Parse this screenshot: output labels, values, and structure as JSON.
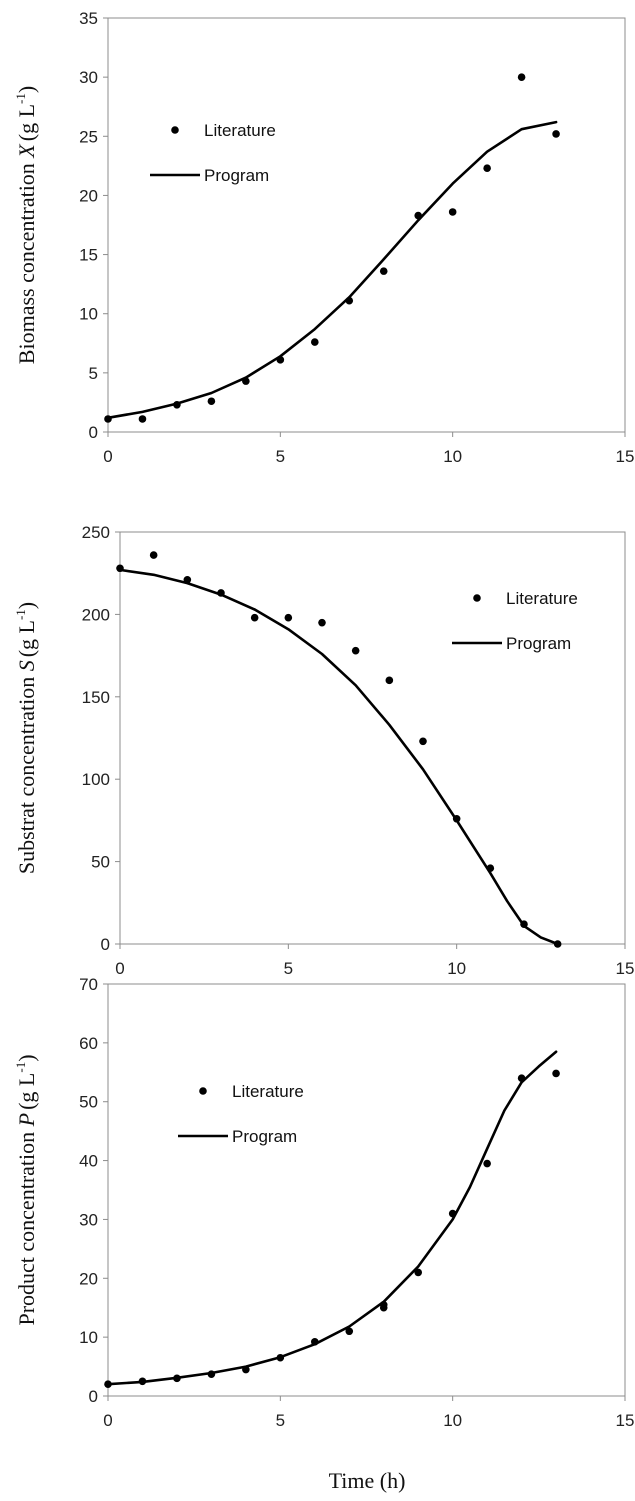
{
  "figure": {
    "xlabel": "Time (h)"
  },
  "chart_data": [
    {
      "type": "scatter",
      "ylabel": {
        "prefix": "Biomass concentration ",
        "symbol": "X",
        "unit": "(g L",
        "exp": "-1",
        "close": ")"
      },
      "xlim": [
        0,
        15
      ],
      "ylim": [
        0,
        35
      ],
      "xticks": [
        0,
        5,
        10,
        15
      ],
      "yticks": [
        0,
        5,
        10,
        15,
        20,
        25,
        30,
        35
      ],
      "legend_position": "upper-left",
      "series": [
        {
          "name": "Literature",
          "kind": "points",
          "x": [
            0,
            1,
            2,
            3,
            4,
            5,
            6,
            7,
            8,
            9,
            10,
            11,
            12,
            13
          ],
          "y": [
            1.1,
            1.1,
            2.3,
            2.6,
            4.3,
            6.1,
            7.6,
            11.1,
            13.6,
            18.3,
            18.6,
            22.3,
            30.0,
            25.2
          ]
        },
        {
          "name": "Program",
          "kind": "line",
          "x": [
            0,
            1,
            2,
            3,
            4,
            5,
            6,
            7,
            8,
            9,
            10,
            11,
            12,
            13
          ],
          "y": [
            1.2,
            1.7,
            2.4,
            3.3,
            4.6,
            6.4,
            8.7,
            11.4,
            14.6,
            17.9,
            21.0,
            23.7,
            25.6,
            26.2
          ]
        }
      ]
    },
    {
      "type": "scatter",
      "ylabel": {
        "prefix": "Substrat concentration ",
        "symbol": "S",
        "unit": "(g L",
        "exp": "-1",
        "close": ")"
      },
      "xlim": [
        0,
        15
      ],
      "ylim": [
        0,
        250
      ],
      "xticks": [
        0,
        5,
        10,
        15
      ],
      "yticks": [
        0,
        50,
        100,
        150,
        200,
        250
      ],
      "legend_position": "upper-right",
      "series": [
        {
          "name": "Literature",
          "kind": "points",
          "x": [
            0,
            1,
            2,
            3,
            4,
            5,
            6,
            7,
            8,
            9,
            10,
            11,
            12,
            13
          ],
          "y": [
            228,
            236,
            221,
            213,
            198,
            198,
            195,
            178,
            160,
            123,
            76,
            46,
            12,
            0
          ]
        },
        {
          "name": "Program",
          "kind": "line",
          "x": [
            0,
            1,
            2,
            3,
            4,
            5,
            6,
            7,
            8,
            9,
            10,
            11,
            11.5,
            12,
            12.5,
            13
          ],
          "y": [
            227,
            224,
            219,
            212,
            203,
            191,
            176,
            157,
            133,
            106,
            75,
            43,
            26,
            11,
            4,
            0
          ]
        }
      ]
    },
    {
      "type": "scatter",
      "ylabel": {
        "prefix": "Product concentration ",
        "symbol": "P",
        "unit": "(g L",
        "exp": "-1",
        "close": ")"
      },
      "xlim": [
        0,
        15
      ],
      "ylim": [
        0,
        70
      ],
      "xticks": [
        0,
        5,
        10,
        15
      ],
      "yticks": [
        0,
        10,
        20,
        30,
        40,
        50,
        60,
        70
      ],
      "legend_position": "upper-left",
      "series": [
        {
          "name": "Literature",
          "kind": "points",
          "x": [
            0,
            1,
            2,
            3,
            4,
            5,
            6,
            7,
            8,
            8,
            9,
            10,
            11,
            12,
            13
          ],
          "y": [
            2.0,
            2.5,
            3.0,
            3.7,
            4.5,
            6.5,
            9.2,
            11.0,
            15.0,
            15.5,
            21.0,
            31.0,
            39.5,
            54.0,
            54.8
          ]
        },
        {
          "name": "Program",
          "kind": "line",
          "x": [
            0,
            1,
            2,
            3,
            4,
            5,
            6,
            7,
            8,
            9,
            10,
            10.5,
            11,
            11.5,
            12,
            12.5,
            13
          ],
          "y": [
            2.0,
            2.4,
            3.1,
            3.9,
            5.0,
            6.6,
            8.8,
            11.8,
            16.0,
            22.0,
            30.0,
            35.5,
            42.0,
            48.5,
            53.3,
            56.0,
            58.5
          ]
        }
      ]
    }
  ]
}
